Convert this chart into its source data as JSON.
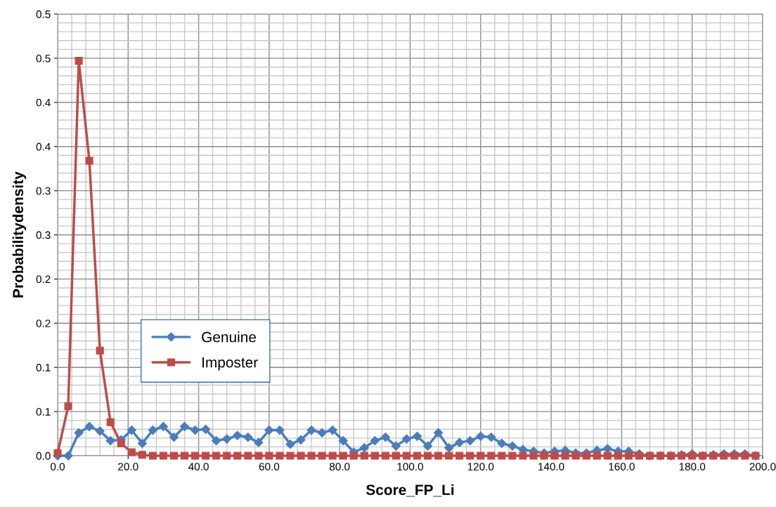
{
  "chart_data": {
    "type": "line",
    "xlabel": "Score_FP_Li",
    "ylabel": "Probabilitydensity",
    "x": [
      0,
      3,
      6,
      9,
      12,
      15,
      18,
      21,
      24,
      27,
      30,
      33,
      36,
      39,
      42,
      45,
      48,
      51,
      54,
      57,
      60,
      63,
      66,
      69,
      72,
      75,
      78,
      81,
      84,
      87,
      90,
      93,
      96,
      99,
      102,
      105,
      108,
      111,
      114,
      117,
      120,
      123,
      126,
      129,
      132,
      135,
      138,
      141,
      144,
      147,
      150,
      153,
      156,
      159,
      162,
      165,
      168,
      171,
      174,
      177,
      180,
      183,
      186,
      189,
      192,
      195,
      198
    ],
    "series": [
      {
        "name": "Genuine",
        "color": "#4a7ebb",
        "marker": "diamond",
        "values": [
          0,
          0,
          0.026,
          0.033,
          0.028,
          0.017,
          0.018,
          0.029,
          0.014,
          0.029,
          0.033,
          0.021,
          0.033,
          0.029,
          0.03,
          0.017,
          0.019,
          0.023,
          0.021,
          0.015,
          0.029,
          0.029,
          0.013,
          0.018,
          0.029,
          0.026,
          0.029,
          0.017,
          0.004,
          0.009,
          0.017,
          0.021,
          0.011,
          0.019,
          0.022,
          0.011,
          0.026,
          0.009,
          0.015,
          0.017,
          0.022,
          0.021,
          0.014,
          0.011,
          0.007,
          0.005,
          0.003,
          0.005,
          0.006,
          0.003,
          0.003,
          0.006,
          0.008,
          0.005,
          0.005,
          0.002,
          0,
          0,
          0,
          0.001,
          0.002,
          0,
          0.001,
          0.002,
          0.002,
          0.002,
          0
        ]
      },
      {
        "name": "Imposter",
        "color": "#be4b48",
        "marker": "square",
        "values": [
          0.003,
          0.056,
          0.447,
          0.334,
          0.119,
          0.038,
          0.014,
          0.004,
          0.001,
          0,
          0,
          0,
          0,
          0,
          0,
          0,
          0,
          0,
          0,
          0,
          0,
          0,
          0,
          0,
          0,
          0,
          0,
          0,
          0,
          0,
          0,
          0,
          0,
          0,
          0,
          0,
          0,
          0,
          0,
          0,
          0,
          0,
          0,
          0,
          0,
          0,
          0,
          0,
          0,
          0,
          0,
          0,
          0,
          0,
          0,
          0,
          0,
          0,
          0,
          0,
          0,
          0,
          0,
          0,
          0,
          0,
          0
        ]
      }
    ],
    "xlim": [
      0,
      200
    ],
    "ylim": [
      0,
      0.5
    ],
    "xticks": [
      {
        "value": 0,
        "label": "0.0"
      },
      {
        "value": 20,
        "label": "20.0"
      },
      {
        "value": 40,
        "label": "40.0"
      },
      {
        "value": 60,
        "label": "60.0"
      },
      {
        "value": 80,
        "label": "80.0"
      },
      {
        "value": 100,
        "label": "100.0"
      },
      {
        "value": 120,
        "label": "120.0"
      },
      {
        "value": 140,
        "label": "140.0"
      },
      {
        "value": 160,
        "label": "160.0"
      },
      {
        "value": 180,
        "label": "180.0"
      },
      {
        "value": 200,
        "label": "200.0"
      }
    ],
    "yticks": [
      {
        "value": 0,
        "label": "0.0"
      },
      {
        "value": 0.05,
        "label": "0.1"
      },
      {
        "value": 0.1,
        "label": "0.1"
      },
      {
        "value": 0.15,
        "label": "0.2"
      },
      {
        "value": 0.2,
        "label": "0.2"
      },
      {
        "value": 0.25,
        "label": "0.3"
      },
      {
        "value": 0.3,
        "label": "0.3"
      },
      {
        "value": 0.35,
        "label": "0.4"
      },
      {
        "value": 0.4,
        "label": "0.4"
      },
      {
        "value": 0.45,
        "label": "0.5"
      },
      {
        "value": 0.5,
        "label": "0.5"
      }
    ],
    "grid": true,
    "legend": "left",
    "line_style": "solid"
  }
}
